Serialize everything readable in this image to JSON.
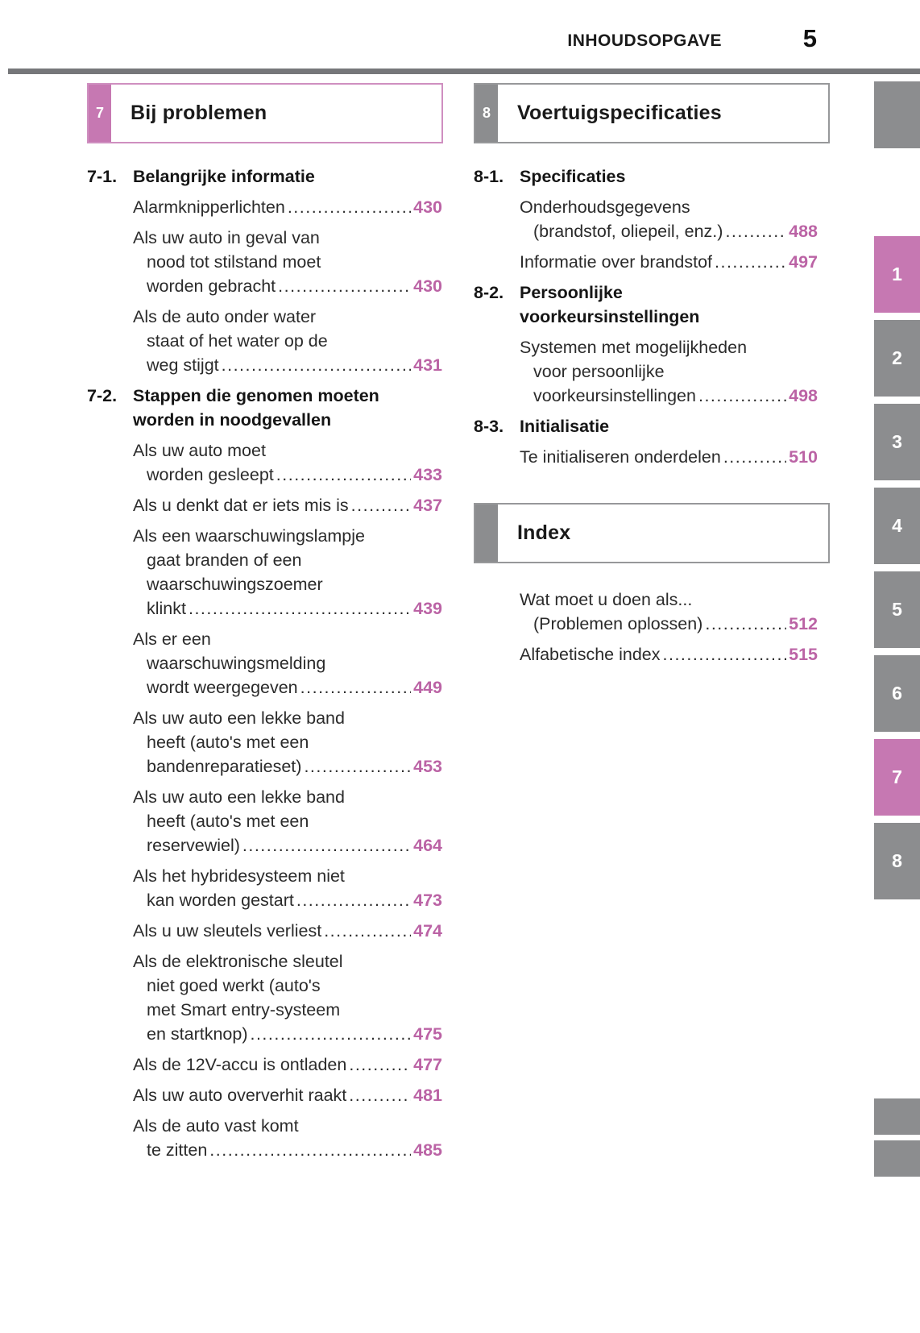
{
  "header": {
    "title": "INHOUDSOPGAVE",
    "page_number": "5"
  },
  "colors": {
    "accent_pink_tab": "#c678b2",
    "pink_border": "#cf8fc0",
    "page_number_pink": "#bb63a5",
    "tab_gray": "#8c8d8f",
    "rule_gray": "#76777a"
  },
  "columns": {
    "left": {
      "chapter_box": {
        "number": "7",
        "title": "Bij problemen",
        "style": "pink"
      },
      "sections": [
        {
          "number": "7-1.",
          "title_lines": [
            "Belangrijke informatie"
          ],
          "entries": [
            {
              "lines": [
                "Alarmknipperlichten"
              ],
              "page": "430"
            },
            {
              "lines": [
                "Als uw auto in geval van",
                "nood tot stilstand moet",
                "worden gebracht"
              ],
              "page": "430"
            },
            {
              "lines": [
                "Als de auto onder water",
                "staat of het water op de",
                "weg stijgt"
              ],
              "page": "431"
            }
          ]
        },
        {
          "number": "7-2.",
          "title_lines": [
            "Stappen die genomen moeten",
            "worden in noodgevallen"
          ],
          "entries": [
            {
              "lines": [
                "Als uw auto moet",
                "worden gesleept"
              ],
              "page": "433"
            },
            {
              "lines": [
                "Als u denkt dat er iets mis is"
              ],
              "page": "437"
            },
            {
              "lines": [
                "Als een waarschuwingslampje",
                "gaat branden of een",
                "waarschuwingszoemer",
                "klinkt"
              ],
              "page": "439"
            },
            {
              "lines": [
                "Als er een",
                "waarschuwingsmelding",
                "wordt weergegeven"
              ],
              "page": "449"
            },
            {
              "lines": [
                "Als uw auto een lekke band",
                "heeft (auto's met een",
                "bandenreparatieset)"
              ],
              "page": "453"
            },
            {
              "lines": [
                "Als uw auto een lekke band",
                "heeft (auto's met een",
                "reservewiel)"
              ],
              "page": "464"
            },
            {
              "lines": [
                "Als het hybridesysteem niet",
                "kan worden gestart"
              ],
              "page": "473"
            },
            {
              "lines": [
                "Als u uw sleutels verliest"
              ],
              "page": "474"
            },
            {
              "lines": [
                "Als de elektronische sleutel",
                "niet goed werkt (auto's",
                "met Smart entry-systeem",
                "en startknop)"
              ],
              "page": "475"
            },
            {
              "lines": [
                "Als de 12V-accu is ontladen"
              ],
              "page": "477"
            },
            {
              "lines": [
                "Als uw auto oververhit raakt"
              ],
              "page": "481"
            },
            {
              "lines": [
                "Als de auto vast komt",
                "te zitten"
              ],
              "page": "485"
            }
          ]
        }
      ]
    },
    "right": {
      "chapter_box": {
        "number": "8",
        "title": "Voertuigspecificaties",
        "style": "gray"
      },
      "sections": [
        {
          "number": "8-1.",
          "title_lines": [
            "Specificaties"
          ],
          "entries": [
            {
              "lines": [
                "Onderhoudsgegevens",
                "(brandstof, oliepeil, enz.)"
              ],
              "page": "488"
            },
            {
              "lines": [
                "Informatie over brandstof"
              ],
              "page": "497"
            }
          ]
        },
        {
          "number": "8-2.",
          "title_lines": [
            "Persoonlijke",
            "voorkeursinstellingen"
          ],
          "entries": [
            {
              "lines": [
                "Systemen met mogelijkheden",
                "voor persoonlijke",
                "voorkeursinstellingen"
              ],
              "page": "498"
            }
          ]
        },
        {
          "number": "8-3.",
          "title_lines": [
            "Initialisatie"
          ],
          "entries": [
            {
              "lines": [
                "Te initialiseren onderdelen"
              ],
              "page": "510"
            }
          ]
        }
      ],
      "index_box": {
        "title": "Index",
        "style": "gray"
      },
      "index_entries": [
        {
          "lines": [
            "Wat moet u doen als...",
            "(Problemen oplossen)"
          ],
          "page": "512"
        },
        {
          "lines": [
            "Alfabetische index"
          ],
          "page": "515"
        }
      ]
    }
  },
  "side_tabs": {
    "numbered": [
      {
        "label": "1",
        "style": "pink"
      },
      {
        "label": "2",
        "style": "gray"
      },
      {
        "label": "3",
        "style": "gray"
      },
      {
        "label": "4",
        "style": "gray"
      },
      {
        "label": "5",
        "style": "gray"
      },
      {
        "label": "6",
        "style": "gray"
      },
      {
        "label": "7",
        "style": "pink"
      },
      {
        "label": "8",
        "style": "gray"
      }
    ],
    "blank_top_count": 1,
    "blank_bottom_count": 2
  }
}
